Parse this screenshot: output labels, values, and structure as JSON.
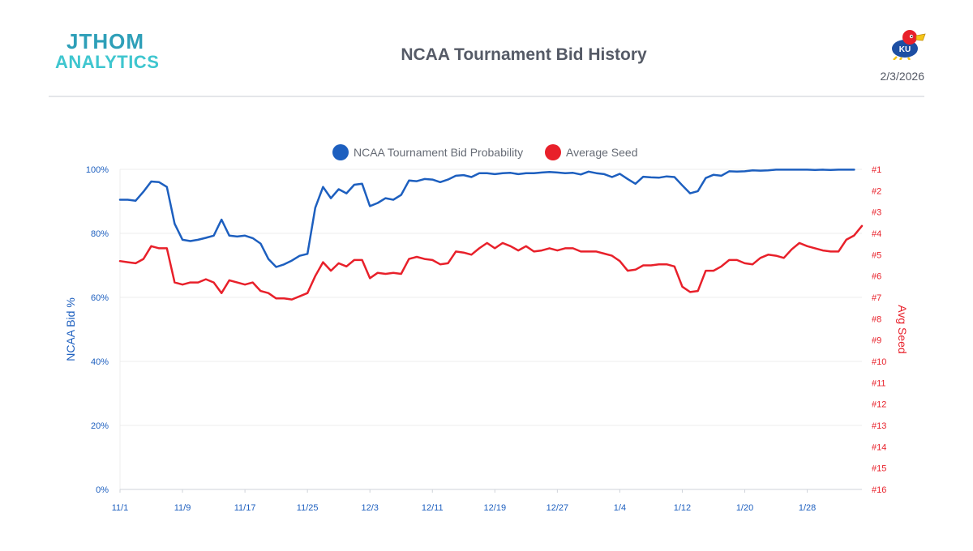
{
  "header": {
    "logo_line1": "JTHOM",
    "logo_line2": "ANALYTICS",
    "title": "NCAA Tournament Bid History",
    "date": "2/3/2026",
    "mascot_text": "KU"
  },
  "colors": {
    "logo_line1": "#2e9fb8",
    "logo_line2": "#3fc6cf",
    "bid": "#1d5fbf",
    "seed": "#e8202a",
    "grid": "#ececec"
  },
  "chart_data": {
    "type": "line",
    "title": "NCAA Tournament Bid History",
    "legend_position": "top",
    "grid": true,
    "xtick_labels": [
      "11/1",
      "11/9",
      "11/17",
      "11/25",
      "12/3",
      "12/11",
      "12/19",
      "12/27",
      "1/4",
      "1/12",
      "1/20",
      "1/28"
    ],
    "ylabel_left": "NCAA Bid %",
    "ylabel_right": "Avg Seed",
    "yticks_left": [
      "0%",
      "20%",
      "40%",
      "60%",
      "80%",
      "100%"
    ],
    "yticks_right": [
      "#1",
      "#2",
      "#3",
      "#4",
      "#5",
      "#6",
      "#7",
      "#8",
      "#9",
      "#10",
      "#11",
      "#12",
      "#13",
      "#14",
      "#15",
      "#16"
    ],
    "ylim_left": [
      0,
      100
    ],
    "ylim_right_seed": [
      1,
      16
    ],
    "series": [
      {
        "name": "NCAA Tournament Bid Probability",
        "axis": "left",
        "points": [
          [
            "11/1",
            90.5
          ],
          [
            "11/2",
            90.5
          ],
          [
            "11/3",
            90.2
          ],
          [
            "11/4",
            93
          ],
          [
            "11/5",
            96.2
          ],
          [
            "11/6",
            96
          ],
          [
            "11/7",
            94.5
          ],
          [
            "11/8",
            83
          ],
          [
            "11/9",
            78
          ],
          [
            "11/10",
            77.6
          ],
          [
            "11/11",
            78
          ],
          [
            "11/12",
            78.6
          ],
          [
            "11/13",
            79.3
          ],
          [
            "11/14",
            84.3
          ],
          [
            "11/15",
            79.3
          ],
          [
            "11/16",
            79
          ],
          [
            "11/17",
            79.3
          ],
          [
            "11/18",
            78.5
          ],
          [
            "11/19",
            76.8
          ],
          [
            "11/20",
            72
          ],
          [
            "11/21",
            69.5
          ],
          [
            "11/22",
            70.3
          ],
          [
            "11/23",
            71.5
          ],
          [
            "11/24",
            73
          ],
          [
            "11/25",
            73.6
          ],
          [
            "11/26",
            88
          ],
          [
            "11/27",
            94.5
          ],
          [
            "11/28",
            91
          ],
          [
            "11/29",
            93.8
          ],
          [
            "11/30",
            92.5
          ],
          [
            "12/1",
            95.2
          ],
          [
            "12/2",
            95.5
          ],
          [
            "12/3",
            88.5
          ],
          [
            "12/4",
            89.5
          ],
          [
            "12/5",
            91
          ],
          [
            "12/6",
            90.5
          ],
          [
            "12/7",
            92
          ],
          [
            "12/8",
            96.5
          ],
          [
            "12/9",
            96.3
          ],
          [
            "12/10",
            97
          ],
          [
            "12/11",
            96.8
          ],
          [
            "12/12",
            96
          ],
          [
            "12/13",
            96.8
          ],
          [
            "12/14",
            98
          ],
          [
            "12/15",
            98.2
          ],
          [
            "12/16",
            97.6
          ],
          [
            "12/17",
            98.8
          ],
          [
            "12/18",
            98.8
          ],
          [
            "12/19",
            98.5
          ],
          [
            "12/20",
            98.8
          ],
          [
            "12/21",
            98.9
          ],
          [
            "12/22",
            98.5
          ],
          [
            "12/23",
            98.8
          ],
          [
            "12/24",
            98.8
          ],
          [
            "12/25",
            99
          ],
          [
            "12/26",
            99.2
          ],
          [
            "12/27",
            99
          ],
          [
            "12/28",
            98.8
          ],
          [
            "12/29",
            98.9
          ],
          [
            "12/30",
            98.4
          ],
          [
            "12/31",
            99.3
          ],
          [
            "1/1",
            98.8
          ],
          [
            "1/2",
            98.5
          ],
          [
            "1/3",
            97.6
          ],
          [
            "1/4",
            98.6
          ],
          [
            "1/5",
            97
          ],
          [
            "1/6",
            95.5
          ],
          [
            "1/7",
            97.7
          ],
          [
            "1/8",
            97.5
          ],
          [
            "1/9",
            97.4
          ],
          [
            "1/10",
            97.8
          ],
          [
            "1/11",
            97.6
          ],
          [
            "1/12",
            95
          ],
          [
            "1/13",
            92.5
          ],
          [
            "1/14",
            93.2
          ],
          [
            "1/15",
            97.3
          ],
          [
            "1/16",
            98.3
          ],
          [
            "1/17",
            98
          ],
          [
            "1/18",
            99.4
          ],
          [
            "1/19",
            99.3
          ],
          [
            "1/20",
            99.4
          ],
          [
            "1/21",
            99.7
          ],
          [
            "1/22",
            99.6
          ],
          [
            "1/23",
            99.7
          ],
          [
            "1/24",
            99.9
          ],
          [
            "1/25",
            99.9
          ],
          [
            "1/26",
            99.9
          ],
          [
            "1/27",
            99.9
          ],
          [
            "1/28",
            99.9
          ],
          [
            "1/29",
            99.8
          ],
          [
            "1/30",
            99.9
          ],
          [
            "1/31",
            99.8
          ],
          [
            "2/1",
            99.9
          ],
          [
            "2/2",
            99.9
          ],
          [
            "2/3",
            99.9
          ]
        ]
      },
      {
        "name": "Average Seed",
        "axis": "right",
        "points": [
          [
            "11/1",
            5.3
          ],
          [
            "11/2",
            5.35
          ],
          [
            "11/3",
            5.4
          ],
          [
            "11/4",
            5.2
          ],
          [
            "11/5",
            4.6
          ],
          [
            "11/6",
            4.7
          ],
          [
            "11/7",
            4.7
          ],
          [
            "11/8",
            6.3
          ],
          [
            "11/9",
            6.4
          ],
          [
            "11/10",
            6.3
          ],
          [
            "11/11",
            6.3
          ],
          [
            "11/12",
            6.15
          ],
          [
            "11/13",
            6.3
          ],
          [
            "11/14",
            6.8
          ],
          [
            "11/15",
            6.2
          ],
          [
            "11/16",
            6.3
          ],
          [
            "11/17",
            6.4
          ],
          [
            "11/18",
            6.3
          ],
          [
            "11/19",
            6.7
          ],
          [
            "11/20",
            6.8
          ],
          [
            "11/21",
            7.05
          ],
          [
            "11/22",
            7.05
          ],
          [
            "11/23",
            7.1
          ],
          [
            "11/24",
            6.95
          ],
          [
            "11/25",
            6.8
          ],
          [
            "11/26",
            6
          ],
          [
            "11/27",
            5.35
          ],
          [
            "11/28",
            5.75
          ],
          [
            "11/29",
            5.4
          ],
          [
            "11/30",
            5.55
          ],
          [
            "12/1",
            5.25
          ],
          [
            "12/2",
            5.25
          ],
          [
            "12/3",
            6.1
          ],
          [
            "12/4",
            5.85
          ],
          [
            "12/5",
            5.9
          ],
          [
            "12/6",
            5.85
          ],
          [
            "12/7",
            5.9
          ],
          [
            "12/8",
            5.2
          ],
          [
            "12/9",
            5.1
          ],
          [
            "12/10",
            5.2
          ],
          [
            "12/11",
            5.25
          ],
          [
            "12/12",
            5.45
          ],
          [
            "12/13",
            5.4
          ],
          [
            "12/14",
            4.85
          ],
          [
            "12/15",
            4.9
          ],
          [
            "12/16",
            5
          ],
          [
            "12/17",
            4.7
          ],
          [
            "12/18",
            4.45
          ],
          [
            "12/19",
            4.7
          ],
          [
            "12/20",
            4.45
          ],
          [
            "12/21",
            4.6
          ],
          [
            "12/22",
            4.8
          ],
          [
            "12/23",
            4.6
          ],
          [
            "12/24",
            4.85
          ],
          [
            "12/25",
            4.8
          ],
          [
            "12/26",
            4.7
          ],
          [
            "12/27",
            4.8
          ],
          [
            "12/28",
            4.7
          ],
          [
            "12/29",
            4.7
          ],
          [
            "12/30",
            4.85
          ],
          [
            "12/31",
            4.85
          ],
          [
            "1/1",
            4.85
          ],
          [
            "1/2",
            4.95
          ],
          [
            "1/3",
            5.05
          ],
          [
            "1/4",
            5.3
          ],
          [
            "1/5",
            5.75
          ],
          [
            "1/6",
            5.7
          ],
          [
            "1/7",
            5.5
          ],
          [
            "1/8",
            5.5
          ],
          [
            "1/9",
            5.45
          ],
          [
            "1/10",
            5.45
          ],
          [
            "1/11",
            5.55
          ],
          [
            "1/12",
            6.5
          ],
          [
            "1/13",
            6.75
          ],
          [
            "1/14",
            6.7
          ],
          [
            "1/15",
            5.75
          ],
          [
            "1/16",
            5.75
          ],
          [
            "1/17",
            5.55
          ],
          [
            "1/18",
            5.25
          ],
          [
            "1/19",
            5.25
          ],
          [
            "1/20",
            5.4
          ],
          [
            "1/21",
            5.45
          ],
          [
            "1/22",
            5.15
          ],
          [
            "1/23",
            5
          ],
          [
            "1/24",
            5.05
          ],
          [
            "1/25",
            5.15
          ],
          [
            "1/26",
            4.75
          ],
          [
            "1/27",
            4.45
          ],
          [
            "1/28",
            4.6
          ],
          [
            "1/29",
            4.7
          ],
          [
            "1/30",
            4.8
          ],
          [
            "1/31",
            4.85
          ],
          [
            "2/1",
            4.85
          ],
          [
            "2/2",
            4.3
          ],
          [
            "2/3",
            4.1
          ],
          [
            "2/4",
            3.65
          ]
        ]
      }
    ]
  }
}
